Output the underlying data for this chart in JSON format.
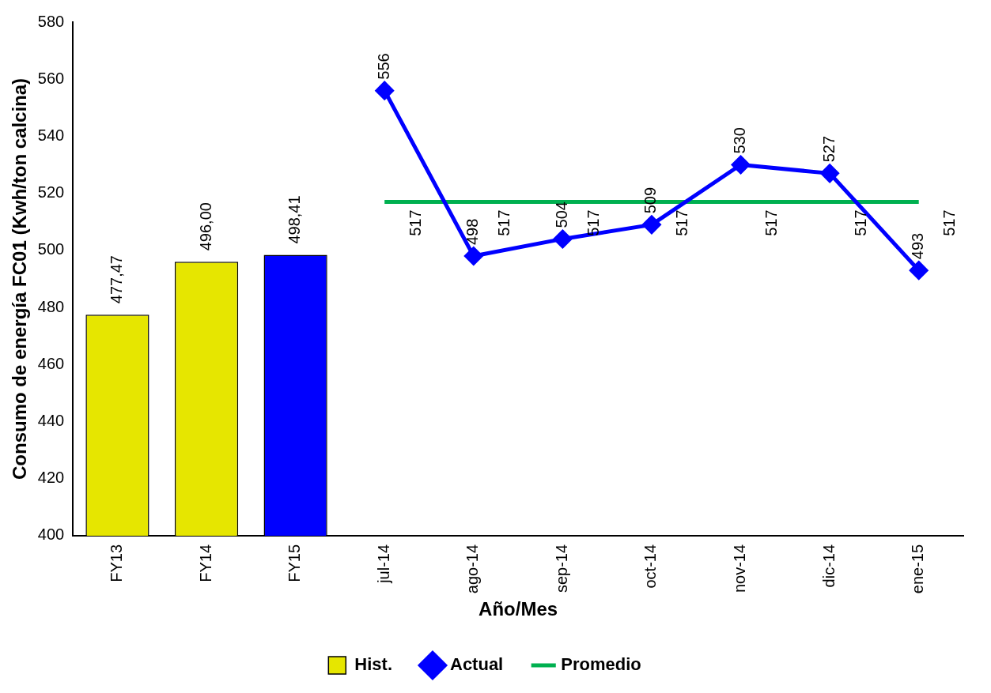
{
  "chart_data": {
    "type": "bar",
    "xlabel": "Año/Mes",
    "ylabel": "Consumo de energía FC01 (Kwh/ton calcina)",
    "categories": [
      "FY13",
      "FY14",
      "FY15",
      "jul-14",
      "ago-14",
      "sep-14",
      "oct-14",
      "nov-14",
      "dic-14",
      "ene-15"
    ],
    "series": [
      {
        "name": "Hist.",
        "color": "#e6e600",
        "colors": [
          "#e6e600",
          "#e6e600",
          "#0000ff",
          null,
          null,
          null,
          null,
          null,
          null,
          null
        ],
        "values": [
          477.47,
          496.0,
          498.41,
          null,
          null,
          null,
          null,
          null,
          null,
          null
        ],
        "value_labels": [
          "477,47",
          "496,00",
          "498,41",
          null,
          null,
          null,
          null,
          null,
          null,
          null
        ]
      },
      {
        "name": "Actual",
        "type": "line",
        "color": "#0000ff",
        "marker": "diamond",
        "values": [
          null,
          null,
          null,
          556,
          498,
          504,
          509,
          530,
          527,
          493
        ],
        "value_labels": [
          null,
          null,
          null,
          "556",
          "498",
          "504",
          "509",
          "530",
          "527",
          "493"
        ]
      },
      {
        "name": "Promedio",
        "type": "line",
        "color": "#00b050",
        "marker": "none",
        "values": [
          null,
          null,
          null,
          517,
          517,
          517,
          517,
          517,
          517,
          517
        ],
        "value_labels": [
          null,
          null,
          null,
          "517",
          "517",
          "517",
          "517",
          "517",
          "517",
          "517"
        ]
      }
    ],
    "ylim": [
      400,
      580
    ],
    "yticks": [
      400,
      420,
      440,
      460,
      480,
      500,
      520,
      540,
      560,
      580
    ],
    "grid": false,
    "legend": "bottom"
  }
}
